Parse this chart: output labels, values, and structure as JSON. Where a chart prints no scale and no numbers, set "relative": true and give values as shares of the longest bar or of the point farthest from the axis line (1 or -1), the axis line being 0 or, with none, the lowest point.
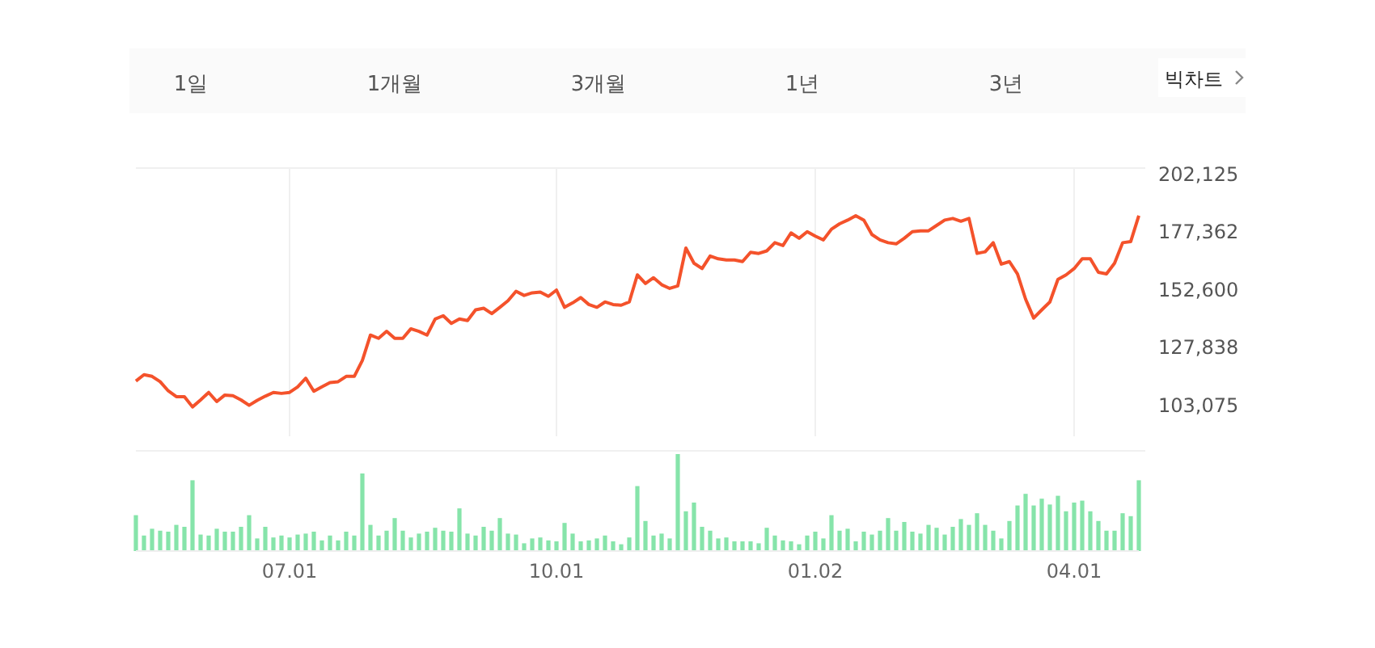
{
  "chart_data": [
    {
      "type": "line",
      "annotations": [
        "1일",
        "1개월",
        "3개월",
        "1년",
        "3년",
        "빅차트"
      ],
      "categories": [
        null,
        null,
        null,
        null,
        null,
        null,
        null,
        null,
        null,
        null,
        null,
        null,
        null,
        null,
        null,
        null,
        null,
        null,
        null,
        "07.01",
        null,
        null,
        null,
        null,
        null,
        null,
        null,
        null,
        null,
        null,
        null,
        null,
        null,
        null,
        null,
        null,
        null,
        null,
        null,
        null,
        null,
        null,
        null,
        null,
        null,
        null,
        null,
        null,
        null,
        null,
        null,
        null,
        "10.01",
        null,
        null,
        null,
        null,
        null,
        null,
        null,
        null,
        null,
        null,
        null,
        null,
        null,
        null,
        null,
        null,
        null,
        null,
        null,
        null,
        null,
        null,
        null,
        null,
        null,
        null,
        null,
        null,
        null,
        null,
        null,
        "01.02",
        null,
        null,
        null,
        null,
        null,
        null,
        null,
        null,
        null,
        null,
        null,
        null,
        null,
        null,
        null,
        null,
        null,
        null,
        null,
        null,
        null,
        null,
        null,
        null,
        null,
        null,
        null,
        null,
        null,
        null,
        null,
        "04.01",
        null,
        null,
        null,
        null,
        null,
        null,
        null,
        null
      ],
      "series": [
        {
          "color": "#f4522b",
          "values": [
            113700,
            116400,
            115700,
            113400,
            109500,
            107000,
            107000,
            102600,
            105600,
            108800,
            104900,
            107700,
            107400,
            105600,
            103300,
            105400,
            107200,
            108800,
            108400,
            108800,
            111200,
            114900,
            109300,
            111200,
            113000,
            113400,
            115700,
            115700,
            122500,
            133400,
            132000,
            135000,
            132000,
            132000,
            136100,
            135000,
            133400,
            140300,
            141700,
            138400,
            140300,
            139600,
            144200,
            144900,
            142600,
            145300,
            148100,
            152200,
            150400,
            151500,
            151800,
            150000,
            152700,
            145300,
            147200,
            149500,
            146500,
            145300,
            147600,
            146500,
            146200,
            147600,
            159200,
            155500,
            158000,
            155000,
            153400,
            154500,
            170700,
            164200,
            161900,
            167300,
            166100,
            165600,
            165600,
            164900,
            168900,
            168400,
            169500,
            173000,
            171800,
            177200,
            174900,
            177700,
            175800,
            174200,
            178800,
            181100,
            182700,
            184600,
            182700,
            176500,
            174200,
            173000,
            172500,
            174900,
            177700,
            178100,
            178100,
            180400,
            182700,
            183400,
            182200,
            183400,
            168400,
            169100,
            173000,
            163800,
            164900,
            159600,
            148800,
            140700,
            144200,
            147600,
            157300,
            159200,
            161900,
            166100,
            166100,
            160300,
            159600,
            164200,
            173000,
            173500,
            184600
          ]
        }
      ],
      "ylim": [
        90000,
        205000
      ],
      "yticks": [
        {
          "value": 103075,
          "label": "103,075"
        },
        {
          "value": 127838,
          "label": "127,838"
        },
        {
          "value": 152600,
          "label": "152,600"
        },
        {
          "value": 177362,
          "label": "177,362"
        },
        {
          "value": 202125,
          "label": "202,125"
        }
      ],
      "grid": "x",
      "tick_labels": "y",
      "marker": "none",
      "line_style": "solid"
    },
    {
      "type": "bar",
      "relative": true,
      "tick_labels": "x",
      "categories": [
        null,
        null,
        null,
        null,
        null,
        null,
        null,
        null,
        null,
        null,
        null,
        null,
        null,
        null,
        null,
        null,
        null,
        null,
        null,
        "07.01",
        null,
        null,
        null,
        null,
        null,
        null,
        null,
        null,
        null,
        null,
        null,
        null,
        null,
        null,
        null,
        null,
        null,
        null,
        null,
        null,
        null,
        null,
        null,
        null,
        null,
        null,
        null,
        null,
        null,
        null,
        null,
        null,
        "10.01",
        null,
        null,
        null,
        null,
        null,
        null,
        null,
        null,
        null,
        null,
        null,
        null,
        null,
        null,
        null,
        null,
        null,
        null,
        null,
        null,
        null,
        null,
        null,
        null,
        null,
        null,
        null,
        null,
        null,
        null,
        null,
        "01.02",
        null,
        null,
        null,
        null,
        null,
        null,
        null,
        null,
        null,
        null,
        null,
        null,
        null,
        null,
        null,
        null,
        null,
        null,
        null,
        null,
        null,
        null,
        null,
        null,
        null,
        null,
        null,
        null,
        null,
        null,
        null,
        "04.01",
        null,
        null,
        null,
        null,
        null,
        null,
        null,
        null
      ],
      "color": "#86e4aa",
      "values": [
        0.37,
        0.16,
        0.23,
        0.21,
        0.2,
        0.27,
        0.25,
        0.73,
        0.17,
        0.16,
        0.23,
        0.2,
        0.2,
        0.25,
        0.37,
        0.13,
        0.25,
        0.14,
        0.16,
        0.14,
        0.17,
        0.18,
        0.2,
        0.11,
        0.16,
        0.11,
        0.2,
        0.16,
        0.8,
        0.27,
        0.16,
        0.21,
        0.34,
        0.21,
        0.14,
        0.18,
        0.2,
        0.24,
        0.21,
        0.2,
        0.44,
        0.18,
        0.16,
        0.25,
        0.21,
        0.34,
        0.18,
        0.17,
        0.08,
        0.13,
        0.14,
        0.11,
        0.1,
        0.29,
        0.18,
        0.1,
        0.11,
        0.13,
        0.16,
        0.1,
        0.07,
        0.14,
        0.67,
        0.31,
        0.16,
        0.18,
        0.13,
        1,
        0.41,
        0.5,
        0.25,
        0.21,
        0.13,
        0.14,
        0.1,
        0.1,
        0.1,
        0.08,
        0.24,
        0.16,
        0.11,
        0.1,
        0.07,
        0.16,
        0.2,
        0.13,
        0.37,
        0.21,
        0.23,
        0.1,
        0.2,
        0.17,
        0.21,
        0.34,
        0.21,
        0.3,
        0.2,
        0.18,
        0.27,
        0.24,
        0.17,
        0.25,
        0.33,
        0.27,
        0.39,
        0.27,
        0.21,
        0.13,
        0.31,
        0.47,
        0.59,
        0.47,
        0.54,
        0.48,
        0.57,
        0.41,
        0.5,
        0.52,
        0.41,
        0.31,
        0.21,
        0.21,
        0.39,
        0.36,
        0.73
      ]
    }
  ]
}
